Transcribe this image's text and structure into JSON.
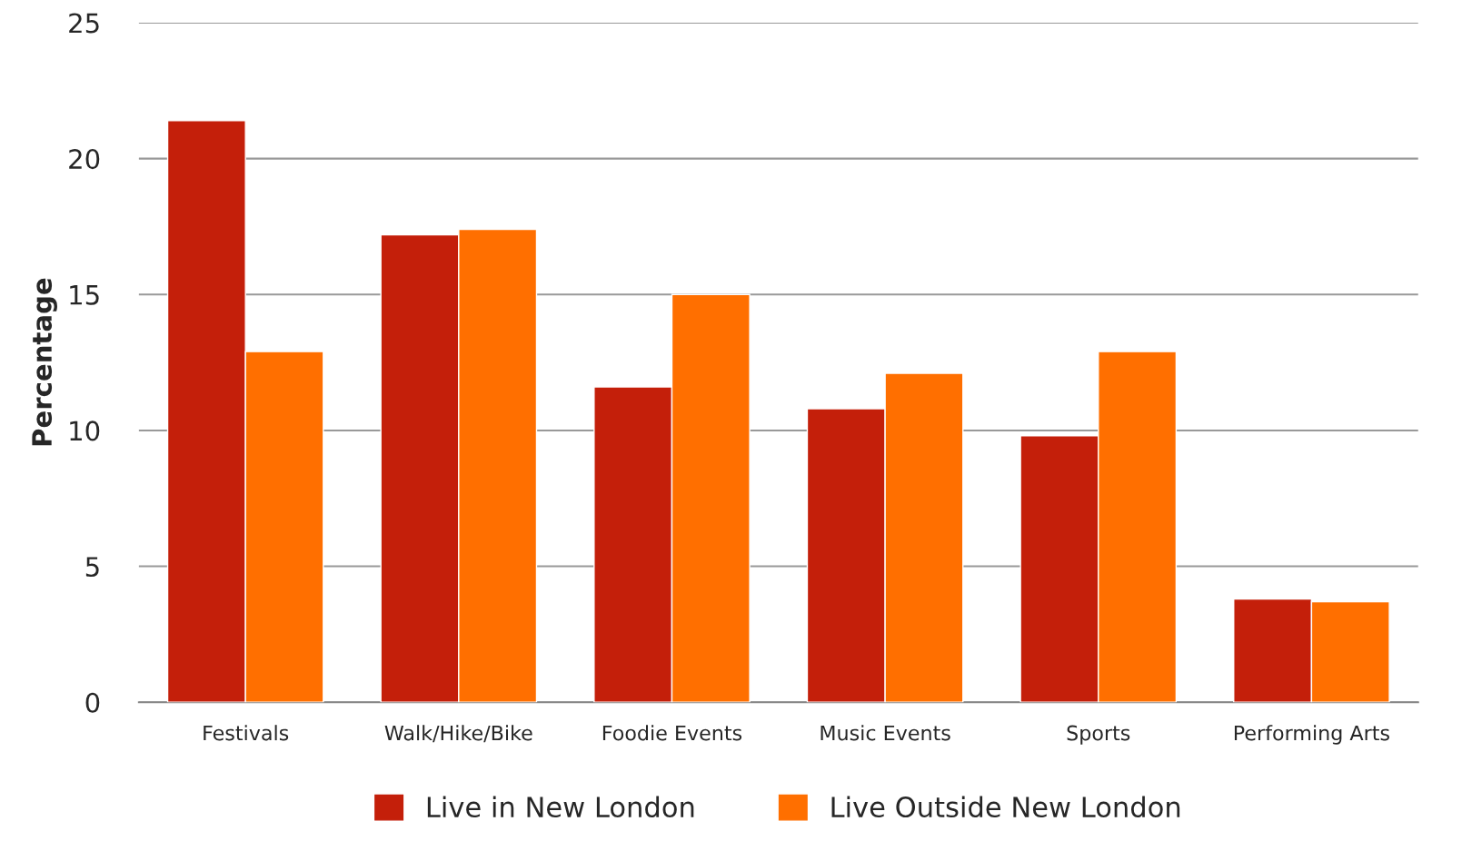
{
  "chart_data": {
    "type": "bar",
    "ylabel": "Percentage",
    "categories": [
      "Festivals",
      "Walk/Hike/Bike",
      "Foodie Events",
      "Music Events",
      "Sports",
      "Performing Arts"
    ],
    "series": [
      {
        "name": "Live in New London",
        "color": "#c41f0a",
        "values": [
          21.4,
          17.2,
          11.6,
          10.8,
          9.8,
          3.8
        ]
      },
      {
        "name": "Live Outside New London",
        "color": "#ff6f00",
        "values": [
          12.9,
          17.4,
          15.0,
          12.1,
          12.9,
          3.7
        ]
      }
    ],
    "ylim": [
      0,
      25
    ],
    "yticks": [
      0,
      5,
      10,
      15,
      20,
      25
    ],
    "grid": "y",
    "legend": "bottom"
  }
}
